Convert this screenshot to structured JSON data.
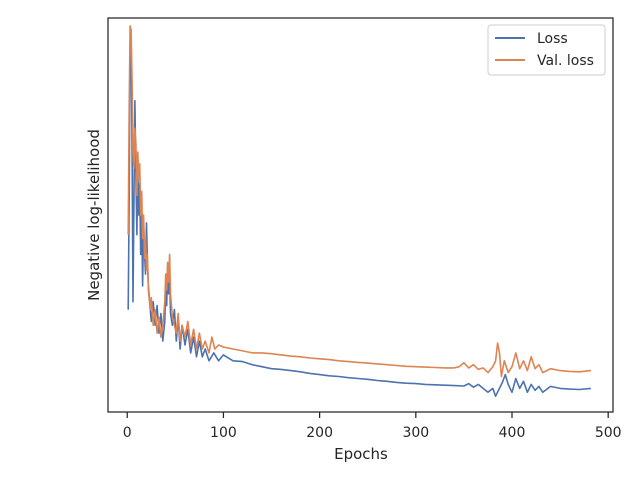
{
  "chart_data": {
    "type": "line",
    "title": "",
    "xlabel": "Epochs",
    "ylabel": "Negative log-likelihood",
    "xlim": [
      -20,
      505
    ],
    "ylim": [
      0,
      1
    ],
    "xticks": [
      0,
      100,
      200,
      300,
      400,
      500
    ],
    "yticks_shown": false,
    "grid": false,
    "legend": "top-right",
    "colors": {
      "loss": "#4c72b0",
      "val_loss": "#dd8452",
      "axes": "#262626"
    },
    "series": [
      {
        "name": "Loss",
        "color": "#4c72b0",
        "points": [
          [
            1,
            0.26
          ],
          [
            2,
            0.55
          ],
          [
            3,
            0.92
          ],
          [
            4,
            0.95
          ],
          [
            5,
            0.7
          ],
          [
            6,
            0.28
          ],
          [
            7,
            0.55
          ],
          [
            8,
            0.79
          ],
          [
            9,
            0.6
          ],
          [
            10,
            0.45
          ],
          [
            11,
            0.62
          ],
          [
            12,
            0.5
          ],
          [
            13,
            0.58
          ],
          [
            14,
            0.4
          ],
          [
            15,
            0.52
          ],
          [
            16,
            0.32
          ],
          [
            17,
            0.48
          ],
          [
            18,
            0.4
          ],
          [
            19,
            0.35
          ],
          [
            20,
            0.48
          ],
          [
            21,
            0.38
          ],
          [
            22,
            0.32
          ],
          [
            24,
            0.26
          ],
          [
            25,
            0.23
          ],
          [
            27,
            0.28
          ],
          [
            29,
            0.22
          ],
          [
            31,
            0.27
          ],
          [
            33,
            0.2
          ],
          [
            35,
            0.25
          ],
          [
            37,
            0.18
          ],
          [
            39,
            0.23
          ],
          [
            40,
            0.32
          ],
          [
            41,
            0.27
          ],
          [
            42,
            0.37
          ],
          [
            43,
            0.3
          ],
          [
            44,
            0.36
          ],
          [
            45,
            0.25
          ],
          [
            47,
            0.22
          ],
          [
            49,
            0.26
          ],
          [
            51,
            0.18
          ],
          [
            53,
            0.24
          ],
          [
            55,
            0.16
          ],
          [
            57,
            0.22
          ],
          [
            60,
            0.17
          ],
          [
            63,
            0.21
          ],
          [
            66,
            0.15
          ],
          [
            69,
            0.19
          ],
          [
            72,
            0.14
          ],
          [
            75,
            0.18
          ],
          [
            78,
            0.14
          ],
          [
            81,
            0.16
          ],
          [
            85,
            0.13
          ],
          [
            90,
            0.15
          ],
          [
            95,
            0.13
          ],
          [
            100,
            0.145
          ],
          [
            110,
            0.13
          ],
          [
            120,
            0.128
          ],
          [
            130,
            0.12
          ],
          [
            140,
            0.115
          ],
          [
            150,
            0.11
          ],
          [
            160,
            0.108
          ],
          [
            170,
            0.105
          ],
          [
            180,
            0.102
          ],
          [
            190,
            0.098
          ],
          [
            200,
            0.095
          ],
          [
            210,
            0.092
          ],
          [
            220,
            0.09
          ],
          [
            230,
            0.087
          ],
          [
            240,
            0.085
          ],
          [
            250,
            0.083
          ],
          [
            260,
            0.08
          ],
          [
            270,
            0.078
          ],
          [
            280,
            0.075
          ],
          [
            290,
            0.073
          ],
          [
            300,
            0.072
          ],
          [
            310,
            0.07
          ],
          [
            320,
            0.069
          ],
          [
            330,
            0.068
          ],
          [
            340,
            0.067
          ],
          [
            350,
            0.066
          ],
          [
            355,
            0.072
          ],
          [
            360,
            0.063
          ],
          [
            365,
            0.07
          ],
          [
            370,
            0.06
          ],
          [
            375,
            0.05
          ],
          [
            380,
            0.06
          ],
          [
            383,
            0.04
          ],
          [
            386,
            0.055
          ],
          [
            390,
            0.075
          ],
          [
            393,
            0.095
          ],
          [
            396,
            0.07
          ],
          [
            400,
            0.05
          ],
          [
            404,
            0.085
          ],
          [
            408,
            0.06
          ],
          [
            412,
            0.078
          ],
          [
            416,
            0.05
          ],
          [
            420,
            0.07
          ],
          [
            424,
            0.055
          ],
          [
            428,
            0.065
          ],
          [
            432,
            0.05
          ],
          [
            440,
            0.065
          ],
          [
            450,
            0.06
          ],
          [
            460,
            0.058
          ],
          [
            470,
            0.057
          ],
          [
            482,
            0.06
          ]
        ]
      },
      {
        "name": "Val. loss",
        "color": "#dd8452",
        "points": [
          [
            1,
            0.45
          ],
          [
            2,
            0.78
          ],
          [
            3,
            0.98
          ],
          [
            4,
            0.97
          ],
          [
            5,
            0.85
          ],
          [
            6,
            0.66
          ],
          [
            7,
            0.62
          ],
          [
            8,
            0.72
          ],
          [
            9,
            0.68
          ],
          [
            10,
            0.55
          ],
          [
            11,
            0.66
          ],
          [
            12,
            0.59
          ],
          [
            13,
            0.63
          ],
          [
            14,
            0.5
          ],
          [
            15,
            0.56
          ],
          [
            16,
            0.44
          ],
          [
            17,
            0.5
          ],
          [
            18,
            0.39
          ],
          [
            19,
            0.44
          ],
          [
            20,
            0.36
          ],
          [
            21,
            0.4
          ],
          [
            22,
            0.31
          ],
          [
            24,
            0.26
          ],
          [
            25,
            0.29
          ],
          [
            27,
            0.22
          ],
          [
            29,
            0.26
          ],
          [
            31,
            0.2
          ],
          [
            33,
            0.24
          ],
          [
            35,
            0.19
          ],
          [
            37,
            0.22
          ],
          [
            39,
            0.28
          ],
          [
            40,
            0.35
          ],
          [
            41,
            0.31
          ],
          [
            42,
            0.38
          ],
          [
            43,
            0.33
          ],
          [
            44,
            0.4
          ],
          [
            45,
            0.3
          ],
          [
            47,
            0.24
          ],
          [
            49,
            0.22
          ],
          [
            51,
            0.2
          ],
          [
            53,
            0.25
          ],
          [
            55,
            0.18
          ],
          [
            57,
            0.22
          ],
          [
            60,
            0.19
          ],
          [
            63,
            0.23
          ],
          [
            66,
            0.17
          ],
          [
            69,
            0.21
          ],
          [
            72,
            0.16
          ],
          [
            75,
            0.2
          ],
          [
            78,
            0.16
          ],
          [
            81,
            0.18
          ],
          [
            85,
            0.15
          ],
          [
            88,
            0.19
          ],
          [
            91,
            0.16
          ],
          [
            95,
            0.17
          ],
          [
            100,
            0.165
          ],
          [
            110,
            0.16
          ],
          [
            120,
            0.155
          ],
          [
            130,
            0.15
          ],
          [
            140,
            0.15
          ],
          [
            150,
            0.148
          ],
          [
            160,
            0.145
          ],
          [
            170,
            0.142
          ],
          [
            180,
            0.14
          ],
          [
            190,
            0.137
          ],
          [
            200,
            0.135
          ],
          [
            210,
            0.133
          ],
          [
            220,
            0.13
          ],
          [
            230,
            0.128
          ],
          [
            240,
            0.126
          ],
          [
            250,
            0.124
          ],
          [
            260,
            0.122
          ],
          [
            270,
            0.12
          ],
          [
            280,
            0.118
          ],
          [
            290,
            0.116
          ],
          [
            300,
            0.115
          ],
          [
            310,
            0.114
          ],
          [
            320,
            0.113
          ],
          [
            330,
            0.112
          ],
          [
            340,
            0.112
          ],
          [
            345,
            0.115
          ],
          [
            350,
            0.125
          ],
          [
            355,
            0.112
          ],
          [
            360,
            0.12
          ],
          [
            365,
            0.108
          ],
          [
            370,
            0.112
          ],
          [
            375,
            0.1
          ],
          [
            380,
            0.115
          ],
          [
            383,
            0.13
          ],
          [
            385,
            0.175
          ],
          [
            387,
            0.15
          ],
          [
            389,
            0.09
          ],
          [
            392,
            0.13
          ],
          [
            396,
            0.1
          ],
          [
            400,
            0.115
          ],
          [
            404,
            0.15
          ],
          [
            408,
            0.11
          ],
          [
            412,
            0.13
          ],
          [
            416,
            0.105
          ],
          [
            420,
            0.14
          ],
          [
            424,
            0.11
          ],
          [
            428,
            0.12
          ],
          [
            432,
            0.1
          ],
          [
            440,
            0.11
          ],
          [
            450,
            0.105
          ],
          [
            460,
            0.103
          ],
          [
            470,
            0.102
          ],
          [
            482,
            0.105
          ]
        ]
      }
    ]
  }
}
